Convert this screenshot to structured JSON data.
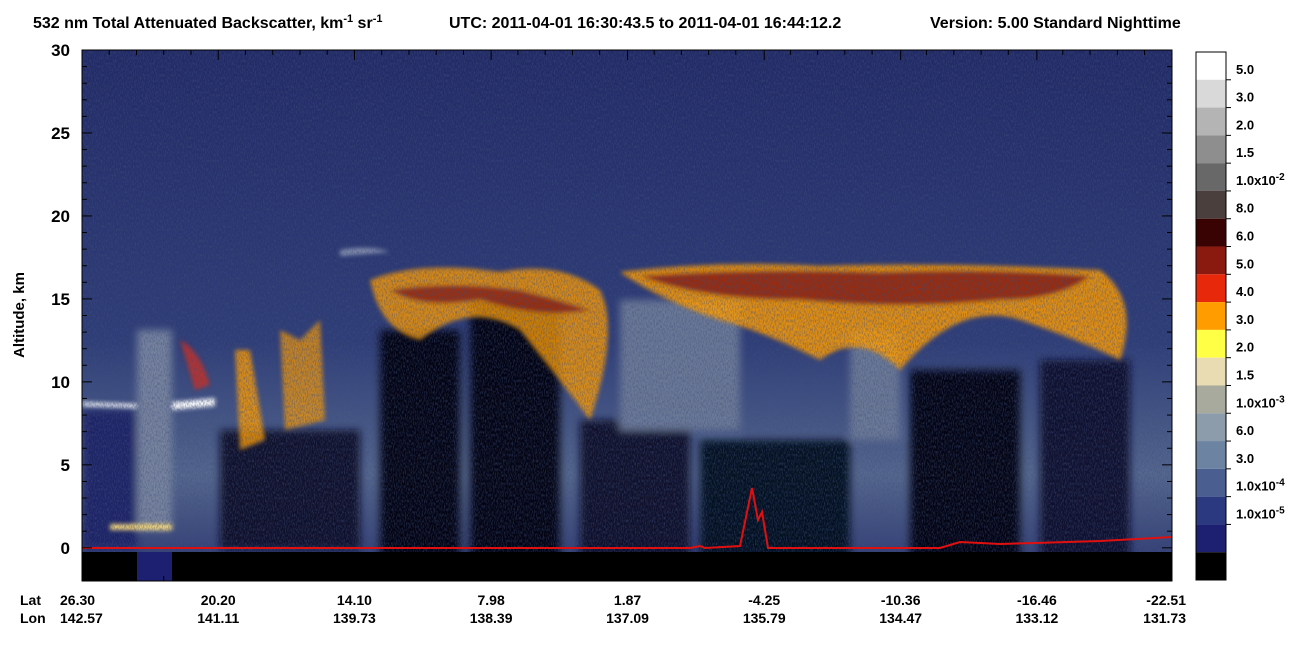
{
  "chart_data": {
    "type": "curtain",
    "title": [
      "532 nm Total Attenuated Backscatter, km",
      "-1",
      " sr",
      "-1"
    ],
    "utc": "UTC:  2011-04-01 16:30:43.5  to  2011-04-01 16:44:12.2",
    "version": "Version: 5.00  Standard  Nighttime",
    "ylabel": "Altitude, km",
    "ylim": [
      -2,
      30
    ],
    "yticks": [
      0,
      5,
      10,
      15,
      20,
      25,
      30
    ],
    "xlim": [
      26.3,
      -22.51
    ],
    "lat_label": "Lat",
    "lon_label": "Lon",
    "xticks": [
      {
        "value": 26.3,
        "label": "26.30"
      },
      {
        "value": 20.2,
        "label": "20.20"
      },
      {
        "value": 14.1,
        "label": "14.10"
      },
      7.98,
      1.87,
      -4.25,
      -10.36,
      -16.46,
      -22.51
    ],
    "lon_labels": [
      "142.57",
      "141.11",
      "139.73",
      "138.39",
      "137.09",
      "135.79",
      "134.47",
      "133.12",
      "131.73"
    ],
    "colorbar": {
      "labels": [
        {
          "text": "5.0"
        },
        {
          "text": "3.0"
        },
        {
          "text": "2.0"
        },
        {
          "text": "1.5"
        },
        {
          "text": "1.0x10",
          "sup": "-2"
        },
        {
          "text": "8.0"
        },
        {
          "text": "6.0"
        },
        {
          "text": "5.0"
        },
        {
          "text": "4.0"
        },
        {
          "text": "3.0"
        },
        {
          "text": "2.0"
        },
        {
          "text": "1.5"
        },
        {
          "text": "1.0x10",
          "sup": "-3"
        },
        {
          "text": "6.0"
        },
        {
          "text": "3.0"
        },
        {
          "text": "1.0x10",
          "sup": "-4"
        },
        {
          "text": "1.0x10",
          "sup": "-5"
        }
      ],
      "colors": [
        "#ffffff",
        "#d9d9d9",
        "#b4b4b4",
        "#8e8e8e",
        "#686868",
        "#4a3f3c",
        "#3a0303",
        "#8a1a10",
        "#e8280a",
        "#ff9c00",
        "#ffff46",
        "#e9dcb2",
        "#a9aa9e",
        "#8c9caa",
        "#6c84a2",
        "#4a5e90",
        "#2b3a80",
        "#1d2070",
        "#000000"
      ]
    }
  }
}
